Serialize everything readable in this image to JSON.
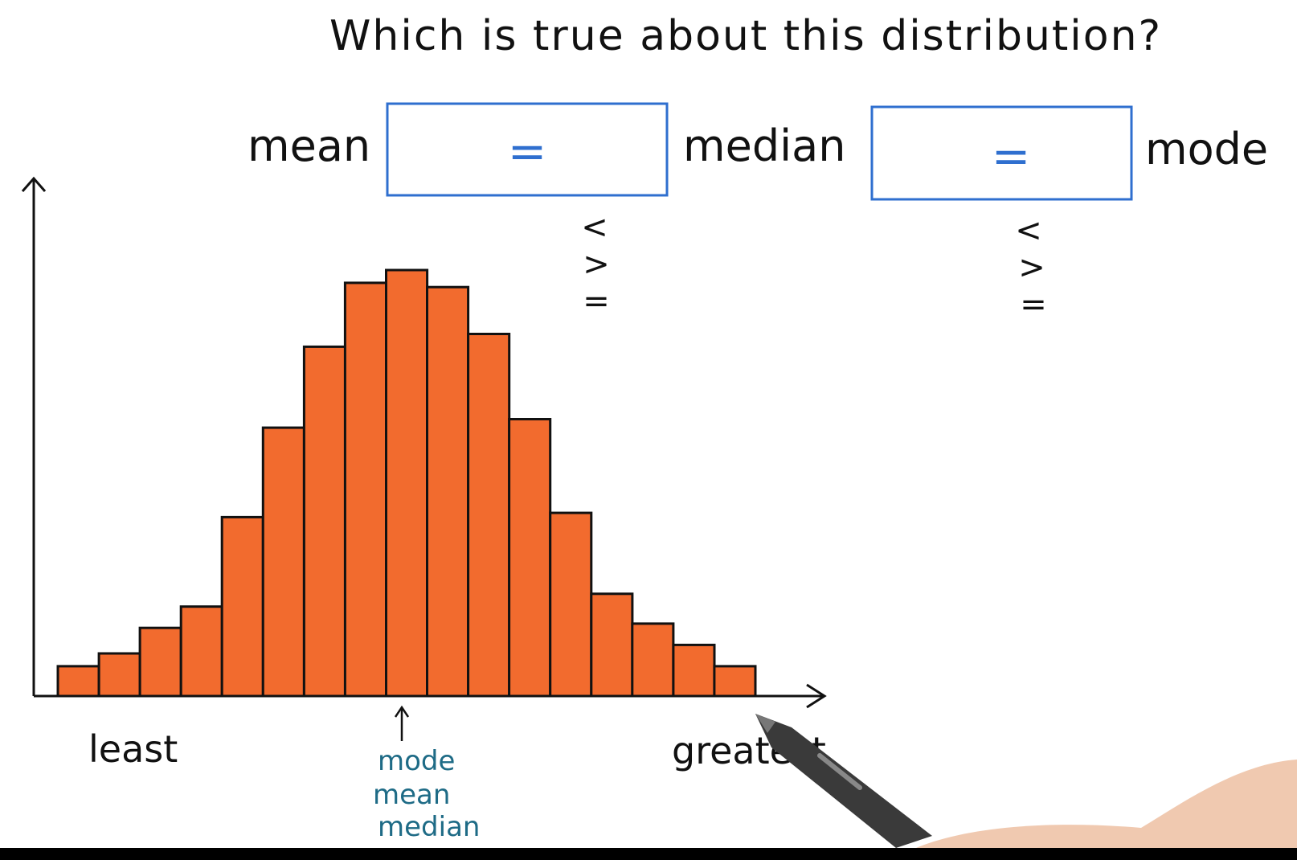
{
  "question": "Which is true about this distribution?",
  "comparison": {
    "left_label": "mean",
    "box1_symbol": "=",
    "box1_options": [
      "<",
      ">",
      "="
    ],
    "middle_label": "median",
    "box2_symbol": "=",
    "box2_options": [
      "<",
      ">",
      "="
    ],
    "right_label": "mode"
  },
  "colors": {
    "bar_fill": "#f26b2e",
    "box_border": "#2f6fcf",
    "annotation": "#1e6b86"
  },
  "chart_data": {
    "type": "bar",
    "values": [
      0.07,
      0.1,
      0.16,
      0.21,
      0.42,
      0.63,
      0.82,
      0.97,
      1.0,
      0.96,
      0.85,
      0.65,
      0.43,
      0.24,
      0.17,
      0.12,
      0.07
    ],
    "xlabel_left": "least",
    "xlabel_right": "greatest",
    "annotation": [
      "mode",
      "mean",
      "median"
    ]
  }
}
